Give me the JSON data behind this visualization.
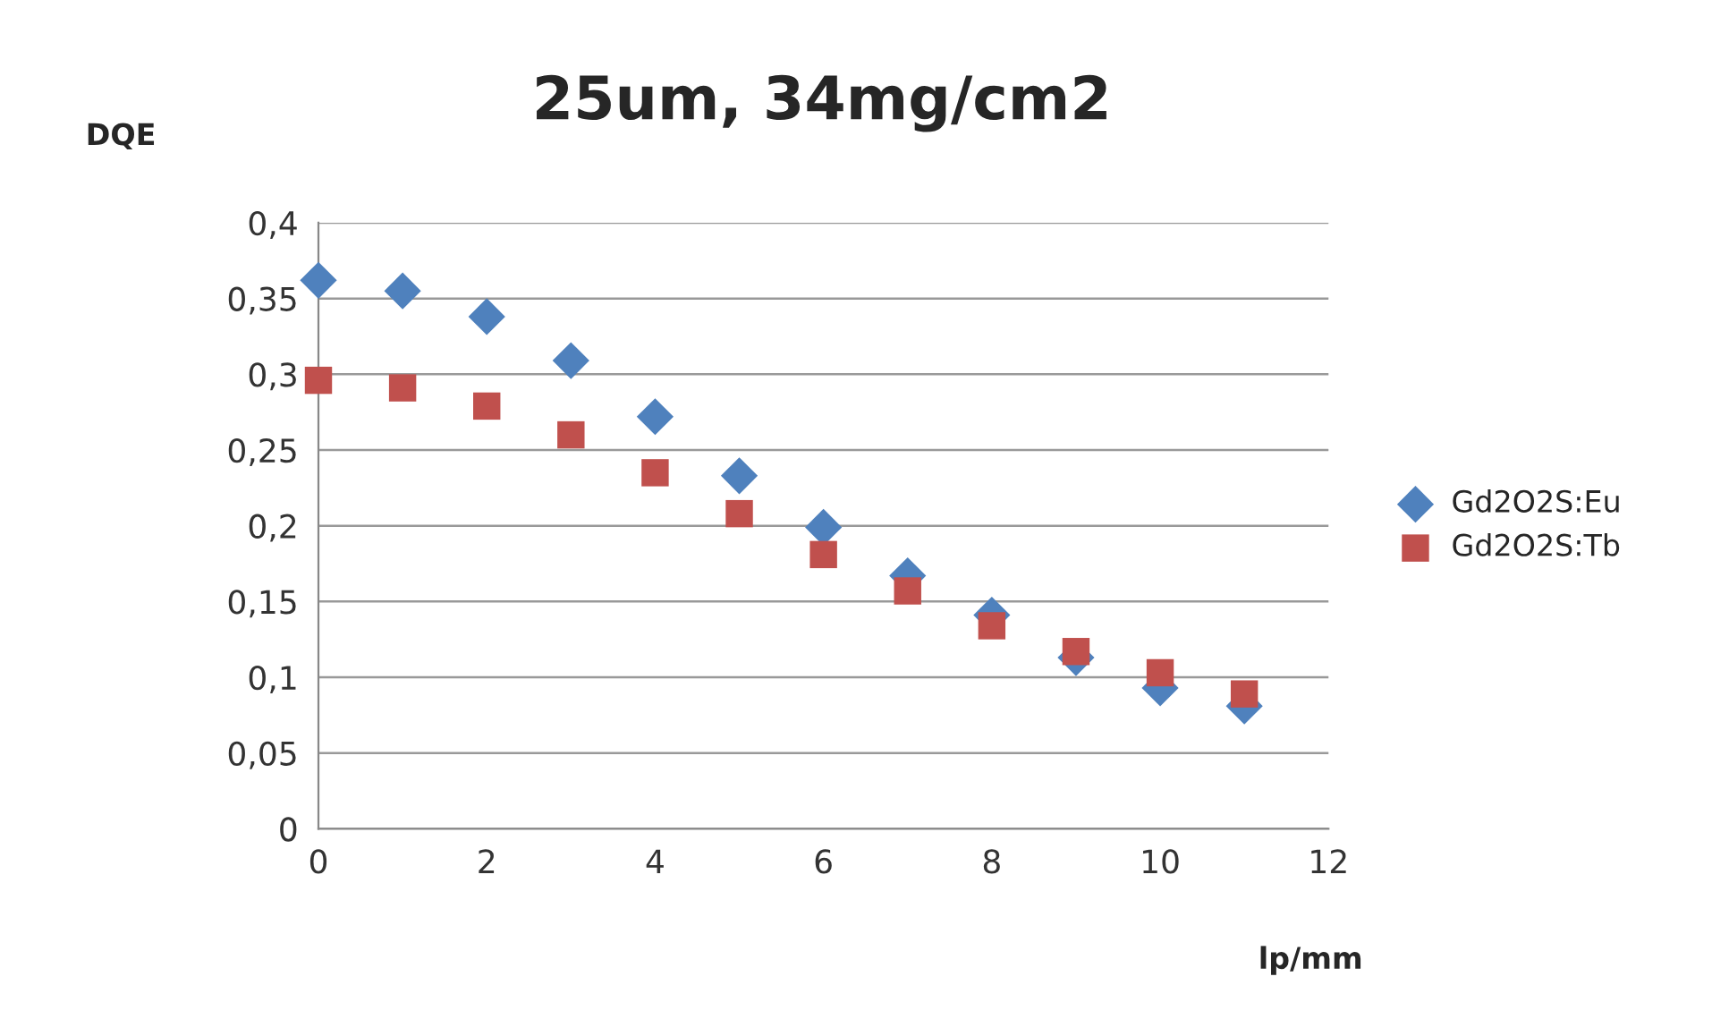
{
  "chart_data": {
    "type": "scatter",
    "title": "25um, 34mg/cm2",
    "xlabel": "lp/mm",
    "ylabel": "DQE",
    "x": [
      0,
      1,
      2,
      3,
      4,
      5,
      6,
      7,
      8,
      9,
      10,
      11
    ],
    "series": [
      {
        "name": "Gd2O2S:Eu",
        "color": "#4f81bd",
        "marker": "diamond",
        "values": [
          0.362,
          0.355,
          0.338,
          0.309,
          0.272,
          0.233,
          0.199,
          0.167,
          0.141,
          0.113,
          0.093,
          0.081
        ]
      },
      {
        "name": "Gd2O2S:Tb",
        "color": "#c0504d",
        "marker": "square",
        "values": [
          0.296,
          0.291,
          0.279,
          0.26,
          0.235,
          0.208,
          0.181,
          0.157,
          0.134,
          0.117,
          0.103,
          0.089
        ]
      }
    ],
    "xlim": [
      0,
      12
    ],
    "xticks": [
      0,
      2,
      4,
      6,
      8,
      10,
      12
    ],
    "ylim": [
      0,
      0.4
    ],
    "yticks": [
      {
        "value": 0,
        "label": "0"
      },
      {
        "value": 0.05,
        "label": "0,05"
      },
      {
        "value": 0.1,
        "label": "0,1"
      },
      {
        "value": 0.15,
        "label": "0,15"
      },
      {
        "value": 0.2,
        "label": "0,2"
      },
      {
        "value": 0.25,
        "label": "0,25"
      },
      {
        "value": 0.3,
        "label": "0,3"
      },
      {
        "value": 0.35,
        "label": "0,35"
      },
      {
        "value": 0.4,
        "label": "0,4"
      }
    ],
    "grid": "y",
    "legend": "right"
  }
}
